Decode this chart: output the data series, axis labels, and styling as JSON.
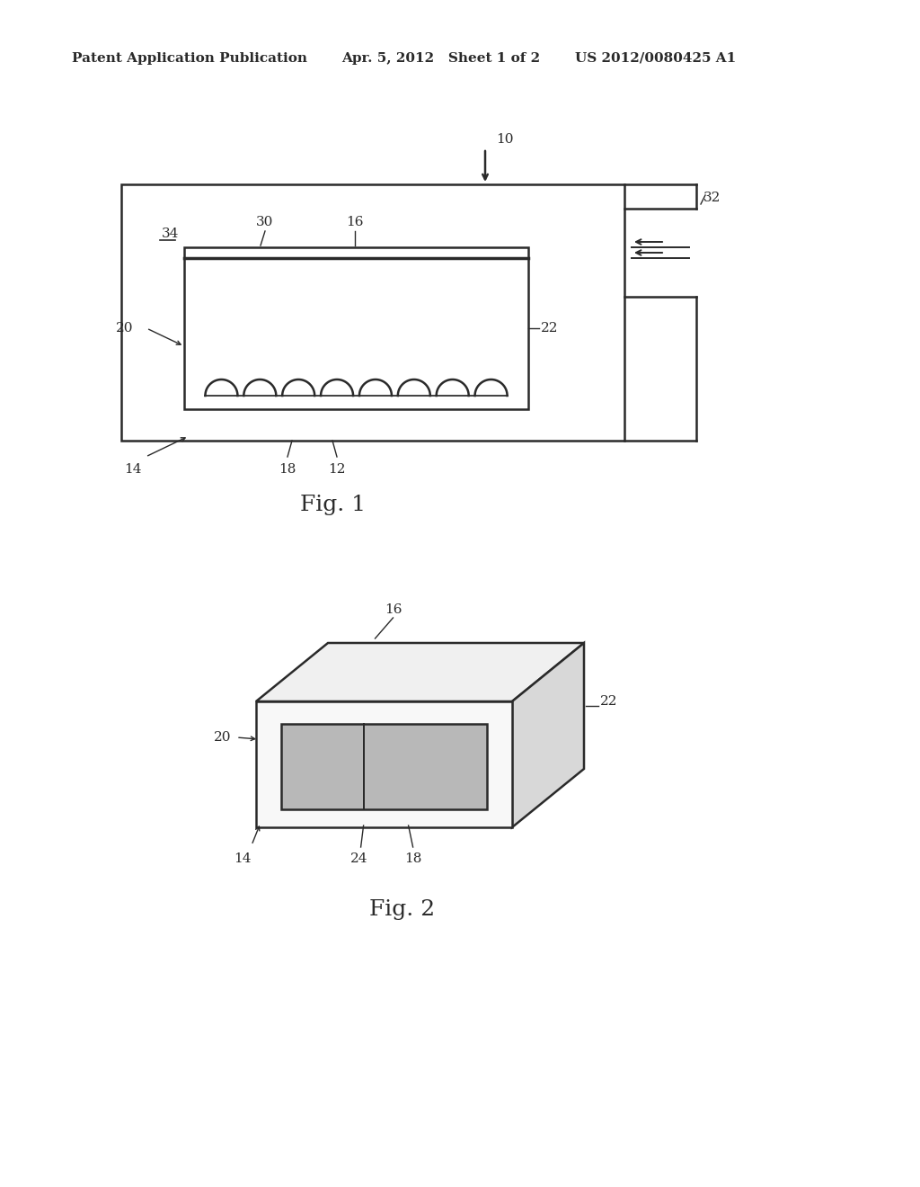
{
  "bg_color": "#ffffff",
  "line_color": "#2a2a2a",
  "header_text1": "Patent Application Publication",
  "header_text2": "Apr. 5, 2012   Sheet 1 of 2",
  "header_text3": "US 2012/0080425 A1",
  "fig1_label": "Fig. 1",
  "fig2_label": "Fig. 2",
  "header_fontsize": 11,
  "fig_label_fontsize": 18,
  "ref_fontsize": 11
}
